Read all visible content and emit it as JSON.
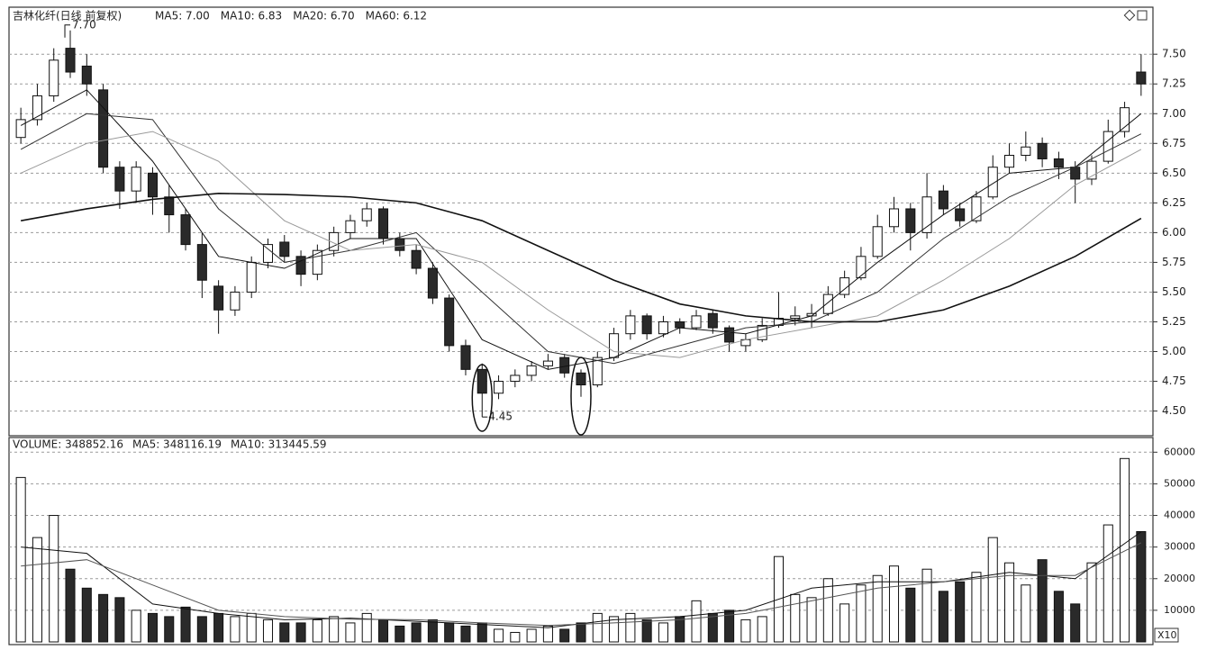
{
  "chart_data": {
    "type": "candlestick",
    "title": "吉林化纤(日线 前复权)",
    "ohlc": [
      [
        6.8,
        7.05,
        6.75,
        6.95
      ],
      [
        6.95,
        7.25,
        6.9,
        7.15
      ],
      [
        7.15,
        7.55,
        7.1,
        7.45
      ],
      [
        7.55,
        7.7,
        7.3,
        7.35
      ],
      [
        7.4,
        7.5,
        7.15,
        7.25
      ],
      [
        7.2,
        7.25,
        6.5,
        6.55
      ],
      [
        6.55,
        6.6,
        6.2,
        6.35
      ],
      [
        6.35,
        6.6,
        6.25,
        6.55
      ],
      [
        6.5,
        6.55,
        6.15,
        6.3
      ],
      [
        6.3,
        6.4,
        6.0,
        6.15
      ],
      [
        6.15,
        6.2,
        5.85,
        5.9
      ],
      [
        5.9,
        6.0,
        5.45,
        5.6
      ],
      [
        5.55,
        5.6,
        5.15,
        5.35
      ],
      [
        5.35,
        5.55,
        5.3,
        5.5
      ],
      [
        5.5,
        5.8,
        5.45,
        5.75
      ],
      [
        5.75,
        5.95,
        5.7,
        5.9
      ],
      [
        5.92,
        5.98,
        5.75,
        5.8
      ],
      [
        5.8,
        5.85,
        5.55,
        5.65
      ],
      [
        5.65,
        5.9,
        5.6,
        5.85
      ],
      [
        5.85,
        6.05,
        5.8,
        6.0
      ],
      [
        6.0,
        6.15,
        5.95,
        6.1
      ],
      [
        6.1,
        6.25,
        6.05,
        6.2
      ],
      [
        6.2,
        6.22,
        5.9,
        5.95
      ],
      [
        5.95,
        6.0,
        5.8,
        5.85
      ],
      [
        5.85,
        5.9,
        5.65,
        5.7
      ],
      [
        5.7,
        5.75,
        5.4,
        5.45
      ],
      [
        5.45,
        5.48,
        5.0,
        5.05
      ],
      [
        5.05,
        5.1,
        4.8,
        4.85
      ],
      [
        4.85,
        4.9,
        4.45,
        4.65
      ],
      [
        4.65,
        4.8,
        4.6,
        4.75
      ],
      [
        4.75,
        4.85,
        4.7,
        4.8
      ],
      [
        4.8,
        4.92,
        4.75,
        4.88
      ],
      [
        4.88,
        4.98,
        4.85,
        4.92
      ],
      [
        4.95,
        4.98,
        4.78,
        4.82
      ],
      [
        4.82,
        4.85,
        4.62,
        4.72
      ],
      [
        4.72,
        5.0,
        4.7,
        4.95
      ],
      [
        4.95,
        5.2,
        4.92,
        5.15
      ],
      [
        5.15,
        5.35,
        5.1,
        5.3
      ],
      [
        5.3,
        5.32,
        5.1,
        5.15
      ],
      [
        5.15,
        5.3,
        5.12,
        5.25
      ],
      [
        5.25,
        5.28,
        5.15,
        5.2
      ],
      [
        5.2,
        5.35,
        5.18,
        5.3
      ],
      [
        5.32,
        5.35,
        5.15,
        5.2
      ],
      [
        5.2,
        5.22,
        5.0,
        5.08
      ],
      [
        5.05,
        5.15,
        5.0,
        5.1
      ],
      [
        5.1,
        5.28,
        5.08,
        5.22
      ],
      [
        5.22,
        5.5,
        5.2,
        5.28
      ],
      [
        5.28,
        5.38,
        5.22,
        5.3
      ],
      [
        5.3,
        5.4,
        5.2,
        5.32
      ],
      [
        5.32,
        5.55,
        5.3,
        5.48
      ],
      [
        5.48,
        5.68,
        5.45,
        5.62
      ],
      [
        5.62,
        5.88,
        5.6,
        5.8
      ],
      [
        5.8,
        6.15,
        5.78,
        6.05
      ],
      [
        6.05,
        6.3,
        6.0,
        6.2
      ],
      [
        6.2,
        6.25,
        5.85,
        6.0
      ],
      [
        6.0,
        6.5,
        5.95,
        6.3
      ],
      [
        6.35,
        6.4,
        6.15,
        6.2
      ],
      [
        6.2,
        6.25,
        6.05,
        6.1
      ],
      [
        6.1,
        6.35,
        6.08,
        6.3
      ],
      [
        6.3,
        6.65,
        6.28,
        6.55
      ],
      [
        6.55,
        6.75,
        6.5,
        6.65
      ],
      [
        6.65,
        6.85,
        6.6,
        6.72
      ],
      [
        6.75,
        6.8,
        6.55,
        6.62
      ],
      [
        6.62,
        6.68,
        6.45,
        6.55
      ],
      [
        6.55,
        6.6,
        6.25,
        6.45
      ],
      [
        6.45,
        6.65,
        6.4,
        6.6
      ],
      [
        6.6,
        6.95,
        6.58,
        6.85
      ],
      [
        6.85,
        7.1,
        6.8,
        7.05
      ],
      [
        7.35,
        7.5,
        7.15,
        7.25
      ]
    ],
    "ma_index": [
      0,
      4,
      8,
      12,
      16,
      20,
      24,
      28,
      32,
      36,
      40,
      44,
      48,
      52,
      56,
      60,
      64,
      68
    ],
    "ma_series": [
      {
        "label": "MA5: 7.00",
        "color": "#111111",
        "width": 1,
        "values": [
          6.9,
          7.2,
          6.6,
          5.8,
          5.7,
          5.95,
          5.95,
          5.1,
          4.85,
          4.95,
          5.2,
          5.15,
          5.3,
          5.75,
          6.15,
          6.5,
          6.55,
          7.0
        ]
      },
      {
        "label": "MA10: 6.83",
        "color": "#333333",
        "width": 1,
        "values": [
          6.7,
          7.0,
          6.95,
          6.2,
          5.75,
          5.85,
          6.0,
          5.5,
          5.0,
          4.9,
          5.05,
          5.2,
          5.25,
          5.5,
          5.95,
          6.3,
          6.55,
          6.83
        ]
      },
      {
        "label": "MA20: 6.70",
        "color": "#999999",
        "width": 1,
        "values": [
          6.5,
          6.75,
          6.85,
          6.6,
          6.1,
          5.85,
          5.9,
          5.75,
          5.35,
          5.0,
          4.95,
          5.1,
          5.2,
          5.3,
          5.6,
          5.95,
          6.4,
          6.7
        ]
      },
      {
        "label": "MA60: 6.12",
        "color": "#111111",
        "width": 1.6,
        "values": [
          6.1,
          6.2,
          6.28,
          6.33,
          6.32,
          6.3,
          6.25,
          6.1,
          5.85,
          5.6,
          5.4,
          5.3,
          5.25,
          5.25,
          5.35,
          5.55,
          5.8,
          6.12
        ]
      }
    ],
    "annotations": [
      "7.70",
      "4.45"
    ],
    "ylim": [
      4.3,
      7.88
    ],
    "yticks": [
      {
        "value": 4.5,
        "label": "4.50"
      },
      {
        "value": 4.75,
        "label": "4.75"
      },
      {
        "value": 5.0,
        "label": "5.00"
      },
      {
        "value": 5.25,
        "label": "5.25"
      },
      {
        "value": 5.5,
        "label": "5.50"
      },
      {
        "value": 5.75,
        "label": "5.75"
      },
      {
        "value": 6.0,
        "label": "6.00"
      },
      {
        "value": 6.25,
        "label": "6.25"
      },
      {
        "value": 6.5,
        "label": "6.50"
      },
      {
        "value": 6.75,
        "label": "6.75"
      },
      {
        "value": 7.0,
        "label": "7.00"
      },
      {
        "value": 7.25,
        "label": "7.25"
      },
      {
        "value": 7.5,
        "label": "7.50"
      }
    ],
    "grid": true,
    "volume_title": "VOLUME: 348852.16",
    "volumes": [
      52000,
      33000,
      40000,
      23000,
      17000,
      15000,
      14000,
      10000,
      9000,
      8000,
      11000,
      8000,
      9000,
      8000,
      9000,
      7000,
      6000,
      6000,
      7000,
      8000,
      6000,
      9000,
      7000,
      5000,
      6000,
      7000,
      6000,
      5000,
      6000,
      4000,
      3000,
      4000,
      5000,
      4000,
      6000,
      9000,
      8000,
      9000,
      7000,
      6000,
      8000,
      13000,
      9000,
      10000,
      7000,
      8000,
      27000,
      15000,
      14000,
      20000,
      12000,
      18000,
      21000,
      24000,
      17000,
      23000,
      16000,
      19000,
      22000,
      33000,
      25000,
      18000,
      26000,
      16000,
      12000,
      25000,
      37000,
      58000,
      34885
    ],
    "volume_ma_series": [
      {
        "label": "MA5: 348116.19",
        "color": "#111111",
        "values": [
          30000,
          28000,
          12000,
          9000,
          7000,
          7500,
          6500,
          5500,
          4500,
          7000,
          8000,
          10000,
          17000,
          19000,
          19000,
          22000,
          20000,
          34811
        ]
      },
      {
        "label": "MA10: 313445.59",
        "color": "#555555",
        "values": [
          24000,
          26000,
          18000,
          10000,
          8000,
          7200,
          7000,
          6000,
          5200,
          6000,
          7000,
          9000,
          13000,
          17000,
          19000,
          21000,
          21000,
          31344
        ]
      }
    ],
    "volume_ylim": [
      0,
      63500
    ],
    "volume_yticks": [
      10000,
      20000,
      30000,
      40000,
      50000,
      60000
    ],
    "volume_unit": "X10"
  }
}
